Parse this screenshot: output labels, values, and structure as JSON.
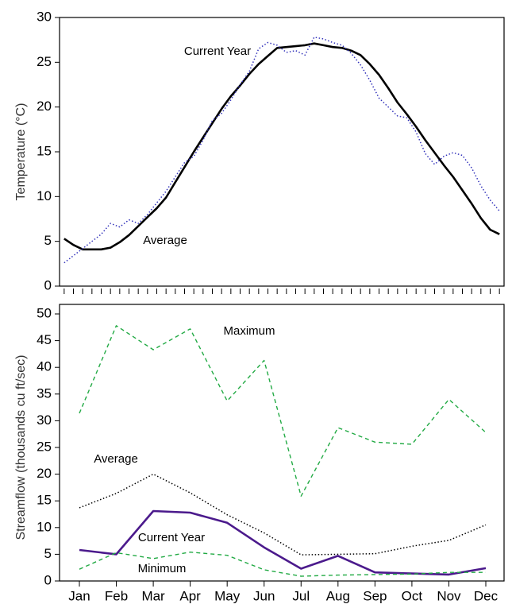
{
  "chart_data": [
    {
      "type": "line",
      "ylabel": "Temperature (°C)",
      "x": [
        1,
        2,
        3,
        4,
        5,
        6,
        7,
        8,
        9,
        10,
        11,
        12,
        13,
        14,
        15,
        16,
        17,
        18,
        19,
        20,
        21,
        22,
        23,
        24,
        25,
        26,
        27,
        28,
        29,
        30,
        31,
        32,
        33,
        34,
        35,
        36,
        37,
        38,
        39,
        40,
        41,
        42,
        43,
        44,
        45,
        46,
        47,
        48
      ],
      "xlim": [
        0.5,
        48.5
      ],
      "xticks": [
        1,
        2,
        3,
        4,
        5,
        6,
        7,
        8,
        9,
        10,
        11,
        12,
        13,
        14,
        15,
        16,
        17,
        18,
        19,
        20,
        21,
        22,
        23,
        24,
        25,
        26,
        27,
        28,
        29,
        30,
        31,
        32,
        33,
        34,
        35,
        36,
        37,
        38,
        39,
        40,
        41,
        42,
        43,
        44,
        45,
        46,
        47,
        48
      ],
      "ylim": [
        0,
        30
      ],
      "yticks": [
        0,
        5,
        10,
        15,
        20,
        25,
        30
      ],
      "series": [
        {
          "name": "Average",
          "color": "#000000",
          "style": "solid",
          "values": [
            5.3,
            4.6,
            4.1,
            4.1,
            4.1,
            4.3,
            4.9,
            5.7,
            6.7,
            7.7,
            8.7,
            9.9,
            11.6,
            13.3,
            15.0,
            16.6,
            18.2,
            19.8,
            21.2,
            22.4,
            23.7,
            24.8,
            25.7,
            26.6,
            26.7,
            26.8,
            26.9,
            27.1,
            26.9,
            26.7,
            26.6,
            26.3,
            25.8,
            24.8,
            23.6,
            22.1,
            20.5,
            19.2,
            17.8,
            16.3,
            14.9,
            13.5,
            12.2,
            10.7,
            9.2,
            7.6,
            6.3,
            5.8
          ]
        },
        {
          "name": "Current Year",
          "color": "#3333bb",
          "style": "dotted",
          "values": [
            2.6,
            3.4,
            4.2,
            5.0,
            5.8,
            7.0,
            6.6,
            7.4,
            7.0,
            8.0,
            9.3,
            10.6,
            12.2,
            13.8,
            14.5,
            16.3,
            18.5,
            19.3,
            20.8,
            22.5,
            24.0,
            26.5,
            27.2,
            26.9,
            26.1,
            26.3,
            25.8,
            27.8,
            27.6,
            27.2,
            26.9,
            26.0,
            24.7,
            23.0,
            21.0,
            20.0,
            19.0,
            18.8,
            17.2,
            14.8,
            13.6,
            14.5,
            14.9,
            14.6,
            13.2,
            11.2,
            9.6,
            8.4
          ]
        }
      ]
    },
    {
      "type": "line",
      "ylabel": "Streamflow (thousands cu ft/sec)",
      "categories": [
        "Jan",
        "Feb",
        "Mar",
        "Apr",
        "May",
        "Jun",
        "Jul",
        "Aug",
        "Sep",
        "Oct",
        "Nov",
        "Dec"
      ],
      "ylim": [
        0,
        50
      ],
      "yticks": [
        0,
        5,
        10,
        15,
        20,
        25,
        30,
        35,
        40,
        45,
        50
      ],
      "series": [
        {
          "name": "Maximum",
          "color": "#22aa44",
          "style": "dashed",
          "values": [
            31.4,
            47.8,
            43.3,
            47.2,
            33.7,
            41.3,
            15.9,
            28.7,
            26.0,
            25.6,
            34.0,
            27.8
          ]
        },
        {
          "name": "Average",
          "color": "#000000",
          "style": "dotted",
          "values": [
            13.7,
            16.4,
            20.0,
            16.5,
            12.4,
            9.0,
            4.9,
            5.0,
            5.1,
            6.5,
            7.6,
            10.5
          ]
        },
        {
          "name": "Current Year",
          "color": "#4b1a8c",
          "style": "solid",
          "values": [
            5.8,
            5.0,
            13.1,
            12.8,
            10.9,
            6.3,
            2.3,
            4.7,
            1.6,
            1.4,
            1.2,
            2.4
          ]
        },
        {
          "name": "Minimum",
          "color": "#22aa44",
          "style": "dashed",
          "values": [
            2.2,
            5.3,
            4.2,
            5.4,
            4.8,
            2.1,
            0.9,
            1.1,
            1.2,
            1.3,
            1.6,
            1.6
          ]
        }
      ]
    }
  ]
}
